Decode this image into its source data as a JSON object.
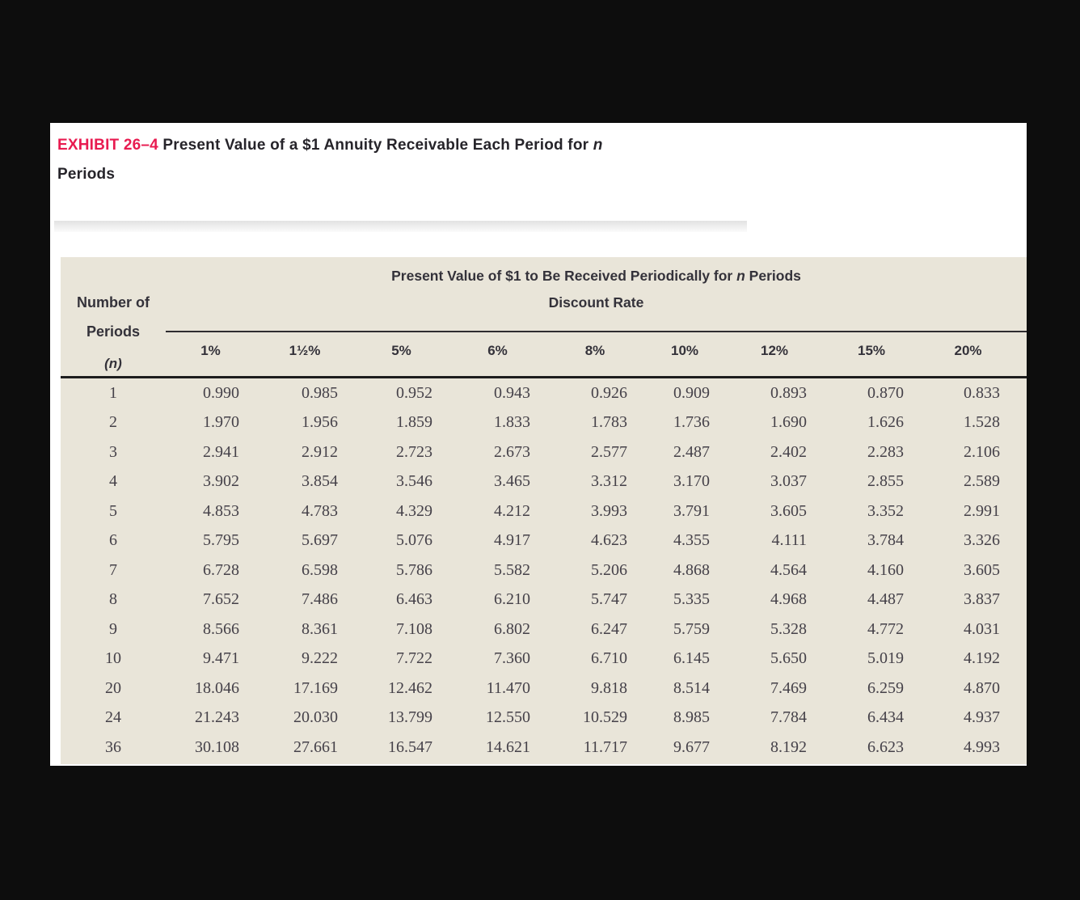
{
  "page": {
    "background_color": "#0d0d0d",
    "panel_color": "#ffffff"
  },
  "exhibit": {
    "label": "EXHIBIT 26–4",
    "label_color": "#e81b50",
    "title_part1": " Present Value of a $1 Annuity Receivable Each Period for ",
    "title_italic": "n",
    "title_line2": "Periods"
  },
  "table": {
    "bg_color": "#e9e5d9",
    "title_part1": "Present Value of $1 to Be Received Periodically for ",
    "title_italic": "n",
    "title_part2": " Periods",
    "row_header_line1": "Number of",
    "row_header_line2": "Periods",
    "row_header_line3": "(n)",
    "col_group_header": "Discount Rate",
    "columns": [
      "1%",
      "1½%",
      "5%",
      "6%",
      "8%",
      "10%",
      "12%",
      "15%",
      "20%"
    ],
    "rows": [
      {
        "n": "1",
        "values": [
          "0.990",
          "0.985",
          "0.952",
          "0.943",
          "0.926",
          "0.909",
          "0.893",
          "0.870",
          "0.833"
        ]
      },
      {
        "n": "2",
        "values": [
          "1.970",
          "1.956",
          "1.859",
          "1.833",
          "1.783",
          "1.736",
          "1.690",
          "1.626",
          "1.528"
        ]
      },
      {
        "n": "3",
        "values": [
          "2.941",
          "2.912",
          "2.723",
          "2.673",
          "2.577",
          "2.487",
          "2.402",
          "2.283",
          "2.106"
        ]
      },
      {
        "n": "4",
        "values": [
          "3.902",
          "3.854",
          "3.546",
          "3.465",
          "3.312",
          "3.170",
          "3.037",
          "2.855",
          "2.589"
        ]
      },
      {
        "n": "5",
        "values": [
          "4.853",
          "4.783",
          "4.329",
          "4.212",
          "3.993",
          "3.791",
          "3.605",
          "3.352",
          "2.991"
        ]
      },
      {
        "n": "6",
        "values": [
          "5.795",
          "5.697",
          "5.076",
          "4.917",
          "4.623",
          "4.355",
          "4.111",
          "3.784",
          "3.326"
        ]
      },
      {
        "n": "7",
        "values": [
          "6.728",
          "6.598",
          "5.786",
          "5.582",
          "5.206",
          "4.868",
          "4.564",
          "4.160",
          "3.605"
        ]
      },
      {
        "n": "8",
        "values": [
          "7.652",
          "7.486",
          "6.463",
          "6.210",
          "5.747",
          "5.335",
          "4.968",
          "4.487",
          "3.837"
        ]
      },
      {
        "n": "9",
        "values": [
          "8.566",
          "8.361",
          "7.108",
          "6.802",
          "6.247",
          "5.759",
          "5.328",
          "4.772",
          "4.031"
        ]
      },
      {
        "n": "10",
        "values": [
          "9.471",
          "9.222",
          "7.722",
          "7.360",
          "6.710",
          "6.145",
          "5.650",
          "5.019",
          "4.192"
        ]
      },
      {
        "n": "20",
        "values": [
          "18.046",
          "17.169",
          "12.462",
          "11.470",
          "9.818",
          "8.514",
          "7.469",
          "6.259",
          "4.870"
        ]
      },
      {
        "n": "24",
        "values": [
          "21.243",
          "20.030",
          "13.799",
          "12.550",
          "10.529",
          "8.985",
          "7.784",
          "6.434",
          "4.937"
        ]
      },
      {
        "n": "36",
        "values": [
          "30.108",
          "27.661",
          "16.547",
          "14.621",
          "11.717",
          "9.677",
          "8.192",
          "6.623",
          "4.993"
        ]
      }
    ]
  }
}
